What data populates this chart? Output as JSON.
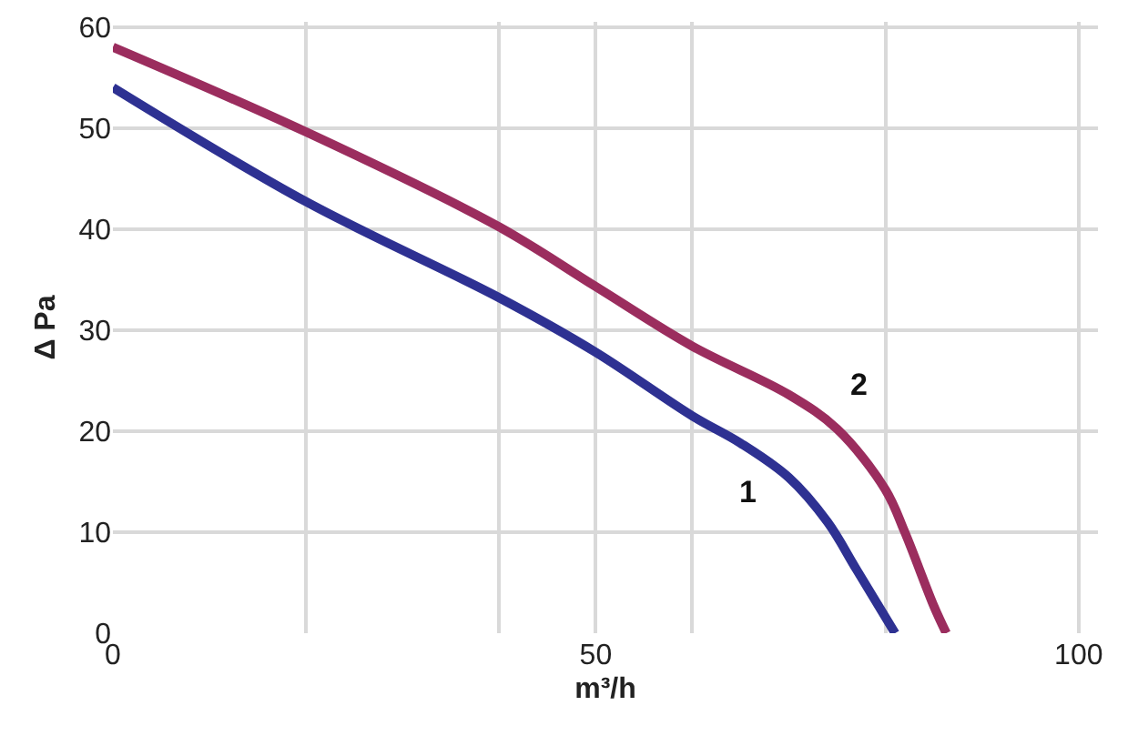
{
  "chart_data": {
    "type": "line",
    "xlabel": "m³/h",
    "ylabel": "Δ Pa",
    "xlim": [
      0,
      102
    ],
    "ylim": [
      0,
      60.5
    ],
    "xticks": [
      0,
      {
        "value": 20,
        "label": null
      },
      {
        "value": 40,
        "label": null
      },
      50,
      {
        "value": 60,
        "label": null
      },
      {
        "value": 80,
        "label": null
      },
      100
    ],
    "yticks": [
      0,
      10,
      20,
      30,
      40,
      50,
      60
    ],
    "grid": true,
    "marker": "none",
    "line_style": "solid",
    "series": [
      {
        "name": "1",
        "color": "#2e3192",
        "x": [
          0,
          20,
          40,
          50,
          60,
          65,
          70,
          74,
          77,
          81
        ],
        "values": [
          54,
          42.7,
          33.2,
          27.8,
          21.5,
          18.8,
          15.4,
          11,
          6.3,
          0
        ]
      },
      {
        "name": "2",
        "color": "#9b2d5e",
        "x": [
          0,
          20,
          40,
          50,
          60,
          70,
          75,
          80,
          82,
          85,
          86.3
        ],
        "values": [
          58,
          49.6,
          40.2,
          34.3,
          28.4,
          23.6,
          20.2,
          14.2,
          10,
          2.7,
          0
        ]
      }
    ]
  }
}
